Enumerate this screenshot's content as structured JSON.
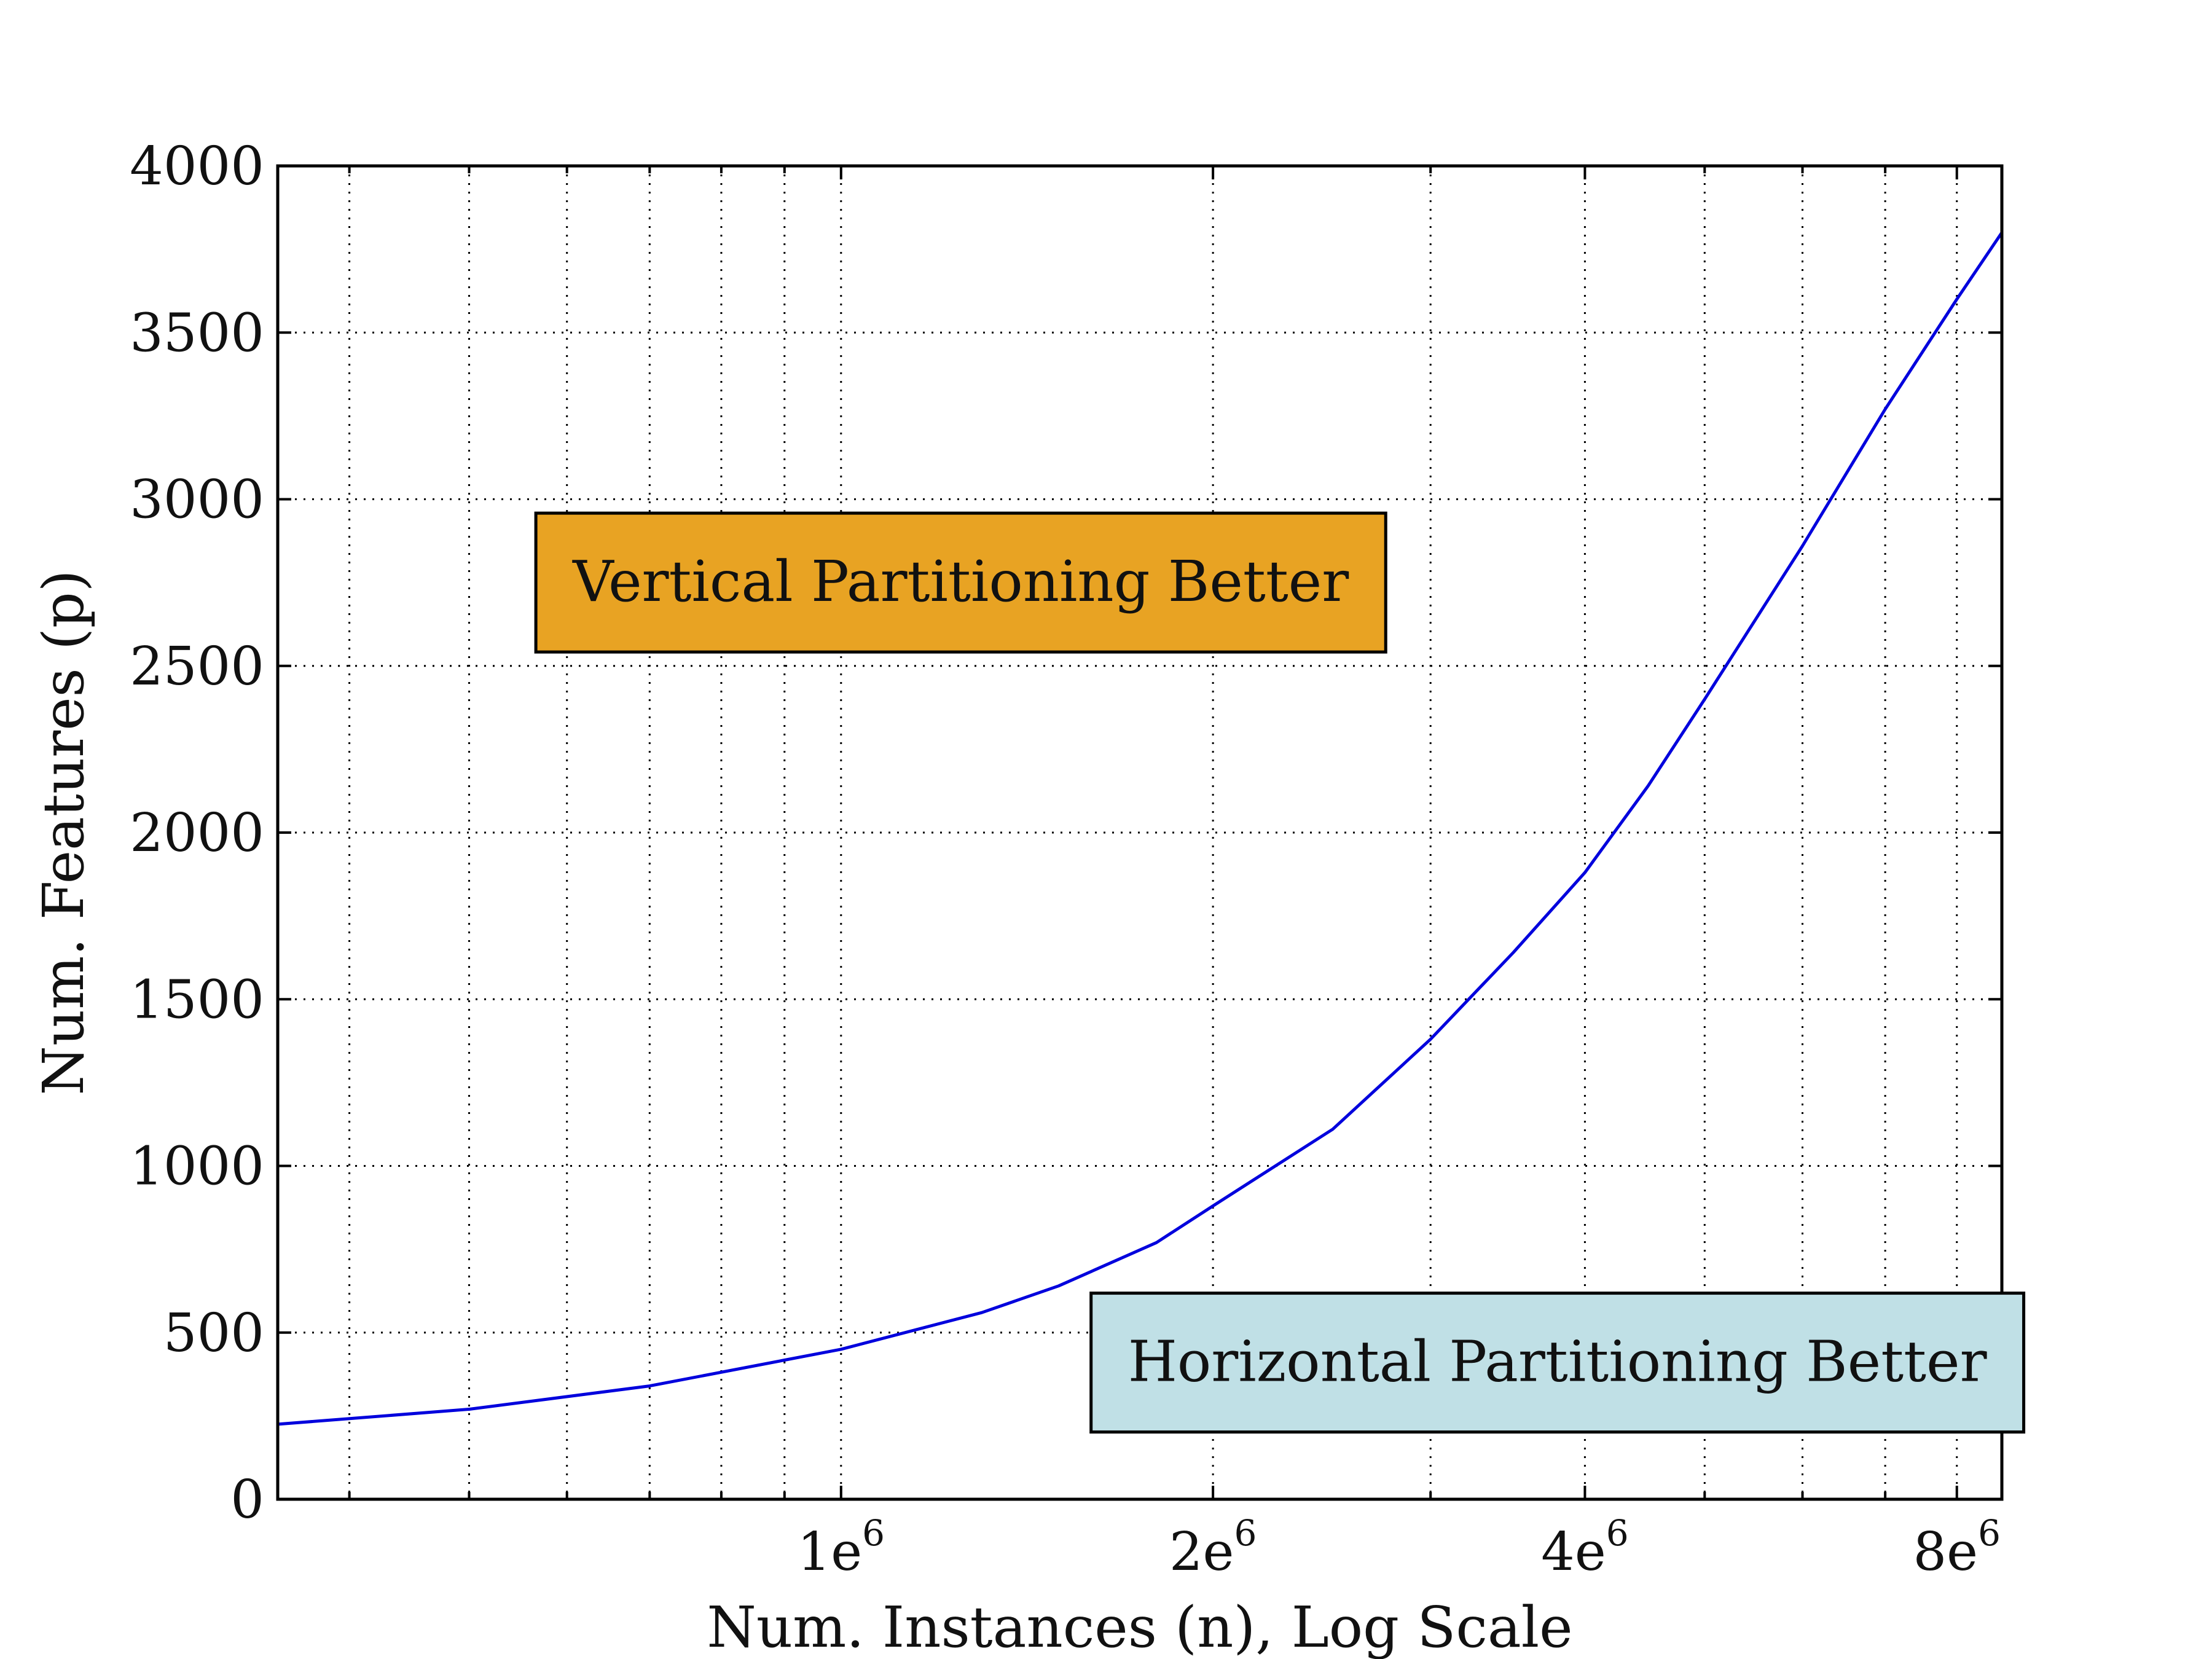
{
  "chart_data": {
    "type": "line",
    "title": "",
    "xlabel": "Num. Instances (n), Log Scale",
    "ylabel": "Num. Features (p)",
    "xscale": "log",
    "xlim": [
      350000,
      8700000
    ],
    "ylim": [
      0,
      4000
    ],
    "grid": true,
    "x_ticks": [
      {
        "value": 1000000,
        "base": "1e",
        "exp": "6"
      },
      {
        "value": 2000000,
        "base": "2e",
        "exp": "6"
      },
      {
        "value": 4000000,
        "base": "4e",
        "exp": "6"
      },
      {
        "value": 8000000,
        "base": "8e",
        "exp": "6"
      }
    ],
    "y_ticks": [
      0,
      500,
      1000,
      1500,
      2000,
      2500,
      3000,
      3500,
      4000
    ],
    "series": [
      {
        "color": "#0000dd",
        "x": [
          350000,
          500000,
          700000,
          1000000,
          1300000,
          1500000,
          1800000,
          2000000,
          2500000,
          3000000,
          3500000,
          4000000,
          4500000,
          5000000,
          6000000,
          7000000,
          8000000,
          8700000
        ],
        "y": [
          225,
          270,
          340,
          450,
          560,
          640,
          770,
          880,
          1110,
          1380,
          1640,
          1880,
          2140,
          2400,
          2860,
          3270,
          3600,
          3800
        ]
      }
    ],
    "annotations": [
      {
        "text": "Vertical Partitioning Better",
        "x": 1250000,
        "y": 2750,
        "bg": "#e8a323"
      },
      {
        "text": "Horizontal Partitioning Better",
        "x": 3800000,
        "y": 410,
        "bg": "#c0e0e6"
      }
    ]
  }
}
